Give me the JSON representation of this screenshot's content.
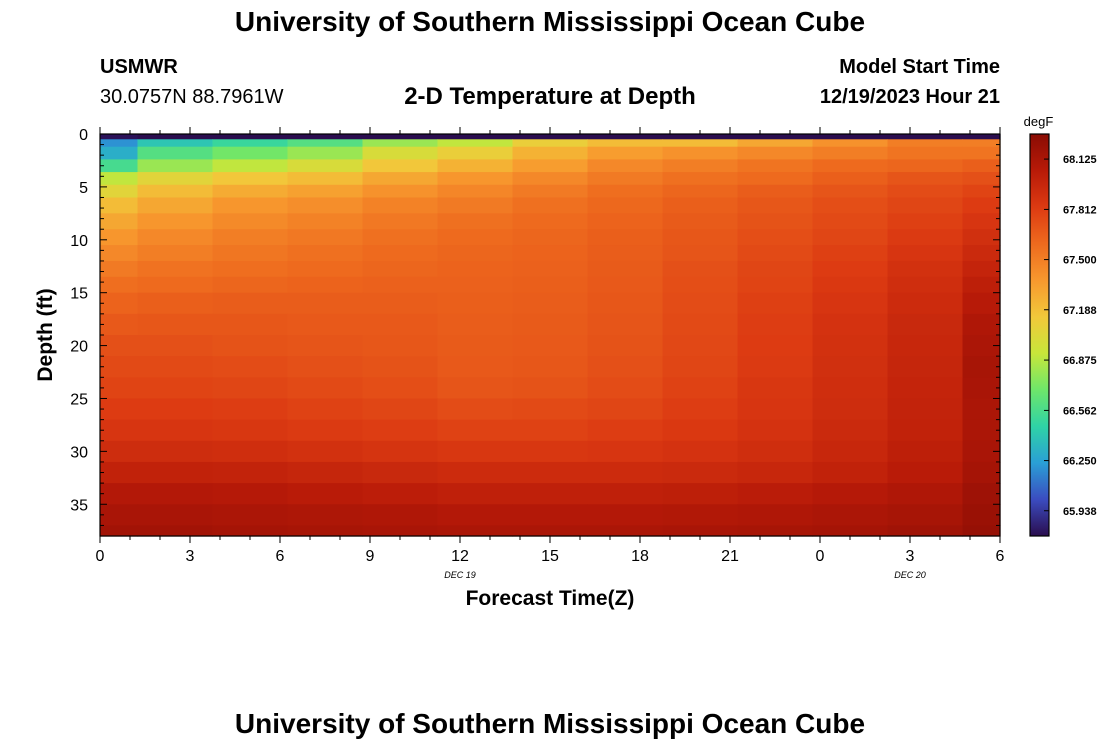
{
  "header": {
    "title": "University of Southern Mississippi Ocean Cube",
    "station_id": "USMWR",
    "coords": "30.0757N  88.7961W",
    "subtitle": "2-D Temperature at Depth",
    "model_start_label": "Model Start Time",
    "model_start_value": "12/19/2023 Hour 21"
  },
  "footer": {
    "title": "University of Southern Mississippi Ocean Cube"
  },
  "colors": {
    "scale": [
      "#2a0d4e",
      "#3b4cc0",
      "#2a9fd6",
      "#2fd3a6",
      "#6ee66a",
      "#c8e63a",
      "#f2c83a",
      "#f7982e",
      "#ee6a1e",
      "#dc3a12",
      "#b81a08",
      "#8a0c04"
    ]
  },
  "chart_data": {
    "type": "heatmap",
    "xlabel": "Forecast Time(Z)",
    "ylabel": "Depth (ft)",
    "x_tick_labels": [
      "0",
      "3",
      "6",
      "9",
      "12",
      "15",
      "18",
      "21",
      "0",
      "3",
      "6"
    ],
    "x_tick_hours": [
      0,
      3,
      6,
      9,
      12,
      15,
      18,
      21,
      24,
      27,
      30
    ],
    "x_date_labels": [
      {
        "label": "DEC 19",
        "hour": 12
      },
      {
        "label": "DEC 20",
        "hour": 27
      }
    ],
    "xlim": [
      0,
      30
    ],
    "y_ticks": [
      0,
      5,
      10,
      15,
      20,
      25,
      30,
      35
    ],
    "ylim": [
      0,
      38
    ],
    "colorbar": {
      "unit": "degF",
      "min": 65.781,
      "max": 68.281,
      "tick_labels": [
        "68.125",
        "67.812",
        "67.500",
        "67.188",
        "66.875",
        "66.562",
        "66.250",
        "65.938"
      ],
      "tick_values": [
        68.125,
        67.812,
        67.5,
        67.188,
        66.875,
        66.562,
        66.25,
        65.938
      ]
    },
    "time_columns_hours": [
      0,
      1.25,
      3.75,
      6.25,
      8.75,
      11.25,
      13.75,
      16.25,
      18.75,
      21.25,
      23.75,
      26.25,
      28.75
    ],
    "depth_rows_ft": [
      0,
      0.5,
      1.2,
      2.4,
      3.6,
      4.8,
      6,
      7.5,
      9,
      10.5,
      12,
      13.5,
      15,
      17,
      19,
      21,
      23,
      25,
      27,
      29,
      31,
      33,
      35,
      37
    ],
    "values_degF": [
      [
        65.8,
        65.3,
        65.4,
        65.2,
        65.2,
        65.1,
        65.1,
        65.1,
        65.0,
        65.0,
        65.1,
        65.2,
        65.2
      ],
      [
        66.2,
        66.4,
        66.5,
        66.6,
        66.8,
        66.9,
        67.1,
        67.2,
        67.2,
        67.3,
        67.4,
        67.5,
        67.5
      ],
      [
        66.3,
        66.6,
        66.7,
        66.8,
        67.0,
        67.1,
        67.25,
        67.35,
        67.4,
        67.45,
        67.5,
        67.55,
        67.55
      ],
      [
        66.55,
        66.8,
        66.9,
        67.0,
        67.15,
        67.25,
        67.35,
        67.45,
        67.5,
        67.55,
        67.6,
        67.62,
        67.65
      ],
      [
        66.9,
        67.05,
        67.15,
        67.2,
        67.3,
        67.38,
        67.45,
        67.52,
        67.57,
        67.6,
        67.65,
        67.7,
        67.72
      ],
      [
        67.05,
        67.2,
        67.28,
        67.33,
        67.4,
        67.46,
        67.52,
        67.58,
        67.62,
        67.66,
        67.7,
        67.74,
        67.78
      ],
      [
        67.2,
        67.3,
        67.38,
        67.42,
        67.48,
        67.52,
        67.57,
        67.61,
        67.65,
        67.69,
        67.73,
        67.77,
        67.82
      ],
      [
        67.3,
        67.38,
        67.44,
        67.48,
        67.53,
        67.57,
        67.6,
        67.63,
        67.67,
        67.71,
        67.75,
        67.8,
        67.86
      ],
      [
        67.38,
        67.45,
        67.5,
        67.53,
        67.57,
        67.6,
        67.62,
        67.65,
        67.69,
        67.73,
        67.77,
        67.83,
        67.9
      ],
      [
        67.45,
        67.5,
        67.54,
        67.57,
        67.6,
        67.62,
        67.63,
        67.66,
        67.7,
        67.75,
        67.8,
        67.86,
        67.94
      ],
      [
        67.52,
        67.56,
        67.58,
        67.6,
        67.62,
        67.63,
        67.64,
        67.67,
        67.72,
        67.77,
        67.82,
        67.89,
        67.98
      ],
      [
        67.58,
        67.6,
        67.62,
        67.63,
        67.64,
        67.64,
        67.65,
        67.68,
        67.73,
        67.78,
        67.84,
        67.91,
        68.02
      ],
      [
        67.63,
        67.65,
        67.66,
        67.66,
        67.66,
        67.65,
        67.66,
        67.69,
        67.74,
        67.8,
        67.86,
        67.93,
        68.06
      ],
      [
        67.68,
        67.69,
        67.69,
        67.68,
        67.68,
        67.66,
        67.67,
        67.7,
        67.75,
        67.81,
        67.88,
        67.95,
        68.1
      ],
      [
        67.72,
        67.72,
        67.71,
        67.7,
        67.69,
        67.67,
        67.68,
        67.71,
        67.76,
        67.82,
        67.89,
        67.96,
        68.12
      ],
      [
        67.75,
        67.75,
        67.74,
        67.72,
        67.71,
        67.68,
        67.69,
        67.72,
        67.77,
        67.83,
        67.9,
        67.97,
        68.14
      ],
      [
        67.78,
        67.78,
        67.77,
        67.75,
        67.73,
        67.7,
        67.71,
        67.74,
        67.79,
        67.85,
        67.91,
        67.98,
        68.13
      ],
      [
        67.82,
        67.82,
        67.81,
        67.79,
        67.77,
        67.74,
        67.75,
        67.77,
        67.81,
        67.86,
        67.92,
        67.99,
        68.12
      ],
      [
        67.86,
        67.86,
        67.85,
        67.83,
        67.81,
        67.79,
        67.79,
        67.81,
        67.84,
        67.88,
        67.94,
        68.0,
        68.12
      ],
      [
        67.92,
        67.92,
        67.91,
        67.89,
        67.87,
        67.85,
        67.85,
        67.86,
        67.88,
        67.91,
        67.96,
        68.02,
        68.13
      ],
      [
        68.0,
        68.0,
        67.99,
        67.97,
        67.95,
        67.93,
        67.93,
        67.93,
        67.94,
        67.96,
        68.0,
        68.05,
        68.15
      ],
      [
        68.08,
        68.08,
        68.07,
        68.05,
        68.03,
        68.01,
        68.01,
        68.01,
        68.02,
        68.04,
        68.07,
        68.1,
        68.18
      ],
      [
        68.13,
        68.13,
        68.12,
        68.11,
        68.1,
        68.08,
        68.08,
        68.08,
        68.09,
        68.1,
        68.12,
        68.14,
        68.2
      ],
      [
        68.16,
        68.16,
        68.15,
        68.14,
        68.13,
        68.12,
        68.12,
        68.12,
        68.13,
        68.14,
        68.15,
        68.17,
        68.22
      ]
    ]
  }
}
